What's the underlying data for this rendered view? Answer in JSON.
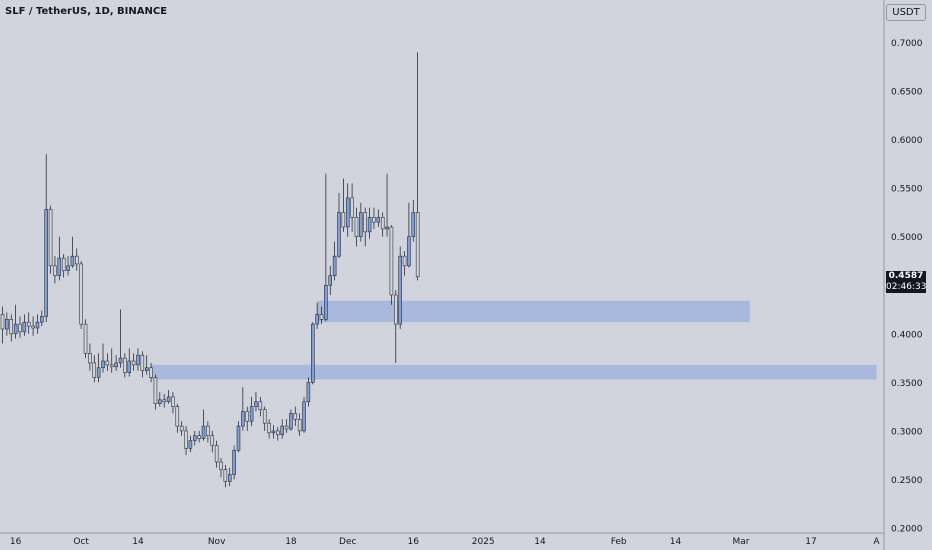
{
  "header": {
    "title": "SLF / TetherUS, 1D, BINANCE",
    "currency_button": "USDT"
  },
  "last_price": {
    "value": "0.4587",
    "countdown": "02:46:33"
  },
  "colors": {
    "background": "#d1d4dc",
    "candle_fill": "#7f9fd6",
    "candle_outline": "#131722",
    "zone": "#a9b8dd",
    "label_bg": "#131722"
  },
  "chart_data": {
    "type": "candlestick",
    "y_ticks": [
      "0.7000",
      "0.6500",
      "0.6000",
      "0.5500",
      "0.5000",
      "0.4500",
      "0.4000",
      "0.3500",
      "0.3000",
      "0.2500",
      "0.2000"
    ],
    "x_ticks": [
      {
        "label": "16",
        "idx": 3
      },
      {
        "label": "Oct",
        "idx": 18
      },
      {
        "label": "14",
        "idx": 31
      },
      {
        "label": "Nov",
        "idx": 49
      },
      {
        "label": "18",
        "idx": 66
      },
      {
        "label": "Dec",
        "idx": 79
      },
      {
        "label": "16",
        "idx": 94
      },
      {
        "label": "2025",
        "idx": 110
      },
      {
        "label": "14",
        "idx": 123
      },
      {
        "label": "Feb",
        "idx": 141
      },
      {
        "label": "14",
        "idx": 154
      },
      {
        "label": "Mar",
        "idx": 169
      },
      {
        "label": "17",
        "idx": 185
      },
      {
        "label": "A",
        "idx": 200
      }
    ],
    "ylim": [
      0.2,
      0.72
    ],
    "zones": [
      {
        "from_idx": 72,
        "to_idx": 171,
        "low": 0.412,
        "high": 0.434
      },
      {
        "from_idx": 34,
        "to_idx": 200,
        "low": 0.353,
        "high": 0.368
      }
    ],
    "candles": [
      [
        0.42,
        0.405,
        0.428,
        0.39
      ],
      [
        0.405,
        0.415,
        0.422,
        0.398
      ],
      [
        0.415,
        0.4,
        0.42,
        0.392
      ],
      [
        0.4,
        0.41,
        0.43,
        0.395
      ],
      [
        0.41,
        0.402,
        0.418,
        0.396
      ],
      [
        0.402,
        0.412,
        0.42,
        0.398
      ],
      [
        0.412,
        0.408,
        0.422,
        0.4
      ],
      [
        0.408,
        0.406,
        0.418,
        0.398
      ],
      [
        0.406,
        0.412,
        0.42,
        0.4
      ],
      [
        0.412,
        0.418,
        0.424,
        0.408
      ],
      [
        0.418,
        0.528,
        0.585,
        0.412
      ],
      [
        0.528,
        0.47,
        0.532,
        0.462
      ],
      [
        0.47,
        0.46,
        0.48,
        0.452
      ],
      [
        0.46,
        0.478,
        0.5,
        0.455
      ],
      [
        0.478,
        0.465,
        0.482,
        0.458
      ],
      [
        0.465,
        0.47,
        0.48,
        0.46
      ],
      [
        0.47,
        0.48,
        0.5,
        0.468
      ],
      [
        0.48,
        0.472,
        0.488,
        0.465
      ],
      [
        0.472,
        0.41,
        0.475,
        0.405
      ],
      [
        0.41,
        0.38,
        0.415,
        0.375
      ],
      [
        0.38,
        0.37,
        0.39,
        0.362
      ],
      [
        0.37,
        0.355,
        0.378,
        0.35
      ],
      [
        0.355,
        0.365,
        0.38,
        0.35
      ],
      [
        0.365,
        0.372,
        0.39,
        0.36
      ],
      [
        0.372,
        0.368,
        0.38,
        0.362
      ],
      [
        0.368,
        0.366,
        0.385,
        0.36
      ],
      [
        0.366,
        0.37,
        0.378,
        0.362
      ],
      [
        0.37,
        0.375,
        0.425,
        0.365
      ],
      [
        0.375,
        0.36,
        0.38,
        0.355
      ],
      [
        0.36,
        0.372,
        0.385,
        0.356
      ],
      [
        0.372,
        0.368,
        0.38,
        0.362
      ],
      [
        0.368,
        0.378,
        0.385,
        0.362
      ],
      [
        0.378,
        0.362,
        0.382,
        0.355
      ],
      [
        0.362,
        0.365,
        0.378,
        0.358
      ],
      [
        0.365,
        0.355,
        0.37,
        0.35
      ],
      [
        0.355,
        0.328,
        0.358,
        0.322
      ],
      [
        0.328,
        0.332,
        0.34,
        0.325
      ],
      [
        0.332,
        0.33,
        0.338,
        0.324
      ],
      [
        0.33,
        0.335,
        0.342,
        0.328
      ],
      [
        0.335,
        0.325,
        0.34,
        0.318
      ],
      [
        0.325,
        0.305,
        0.328,
        0.298
      ],
      [
        0.305,
        0.3,
        0.31,
        0.295
      ],
      [
        0.3,
        0.282,
        0.305,
        0.275
      ],
      [
        0.282,
        0.29,
        0.295,
        0.278
      ],
      [
        0.29,
        0.295,
        0.3,
        0.285
      ],
      [
        0.295,
        0.292,
        0.3,
        0.288
      ],
      [
        0.292,
        0.305,
        0.322,
        0.29
      ],
      [
        0.305,
        0.295,
        0.31,
        0.288
      ],
      [
        0.295,
        0.285,
        0.3,
        0.278
      ],
      [
        0.285,
        0.268,
        0.29,
        0.262
      ],
      [
        0.268,
        0.26,
        0.272,
        0.252
      ],
      [
        0.26,
        0.248,
        0.265,
        0.242
      ],
      [
        0.248,
        0.255,
        0.262,
        0.243
      ],
      [
        0.255,
        0.28,
        0.285,
        0.25
      ],
      [
        0.28,
        0.305,
        0.31,
        0.278
      ],
      [
        0.305,
        0.32,
        0.345,
        0.3
      ],
      [
        0.32,
        0.31,
        0.325,
        0.3
      ],
      [
        0.31,
        0.325,
        0.335,
        0.305
      ],
      [
        0.325,
        0.33,
        0.34,
        0.32
      ],
      [
        0.33,
        0.322,
        0.335,
        0.315
      ],
      [
        0.322,
        0.308,
        0.325,
        0.3
      ],
      [
        0.308,
        0.298,
        0.312,
        0.292
      ],
      [
        0.298,
        0.3,
        0.306,
        0.292
      ],
      [
        0.3,
        0.296,
        0.304,
        0.29
      ],
      [
        0.296,
        0.305,
        0.312,
        0.292
      ],
      [
        0.305,
        0.302,
        0.312,
        0.298
      ],
      [
        0.302,
        0.318,
        0.322,
        0.3
      ],
      [
        0.318,
        0.312,
        0.325,
        0.305
      ],
      [
        0.312,
        0.3,
        0.318,
        0.295
      ],
      [
        0.3,
        0.33,
        0.335,
        0.298
      ],
      [
        0.33,
        0.35,
        0.355,
        0.325
      ],
      [
        0.35,
        0.41,
        0.412,
        0.348
      ],
      [
        0.41,
        0.42,
        0.432,
        0.405
      ],
      [
        0.42,
        0.415,
        0.428,
        0.41
      ],
      [
        0.415,
        0.45,
        0.565,
        0.413
      ],
      [
        0.45,
        0.46,
        0.47,
        0.44
      ],
      [
        0.46,
        0.48,
        0.495,
        0.455
      ],
      [
        0.48,
        0.525,
        0.545,
        0.478
      ],
      [
        0.525,
        0.51,
        0.56,
        0.505
      ],
      [
        0.51,
        0.54,
        0.555,
        0.5
      ],
      [
        0.54,
        0.52,
        0.555,
        0.505
      ],
      [
        0.52,
        0.5,
        0.53,
        0.49
      ],
      [
        0.5,
        0.525,
        0.535,
        0.495
      ],
      [
        0.525,
        0.505,
        0.53,
        0.49
      ],
      [
        0.505,
        0.52,
        0.53,
        0.498
      ],
      [
        0.52,
        0.515,
        0.53,
        0.508
      ],
      [
        0.515,
        0.52,
        0.528,
        0.51
      ],
      [
        0.52,
        0.508,
        0.525,
        0.5
      ],
      [
        0.508,
        0.51,
        0.565,
        0.5
      ],
      [
        0.51,
        0.44,
        0.512,
        0.43
      ],
      [
        0.44,
        0.41,
        0.445,
        0.37
      ],
      [
        0.41,
        0.48,
        0.49,
        0.405
      ],
      [
        0.48,
        0.47,
        0.485,
        0.46
      ],
      [
        0.47,
        0.5,
        0.535,
        0.468
      ],
      [
        0.5,
        0.525,
        0.538,
        0.495
      ],
      [
        0.525,
        0.4587,
        0.69,
        0.455
      ]
    ]
  }
}
